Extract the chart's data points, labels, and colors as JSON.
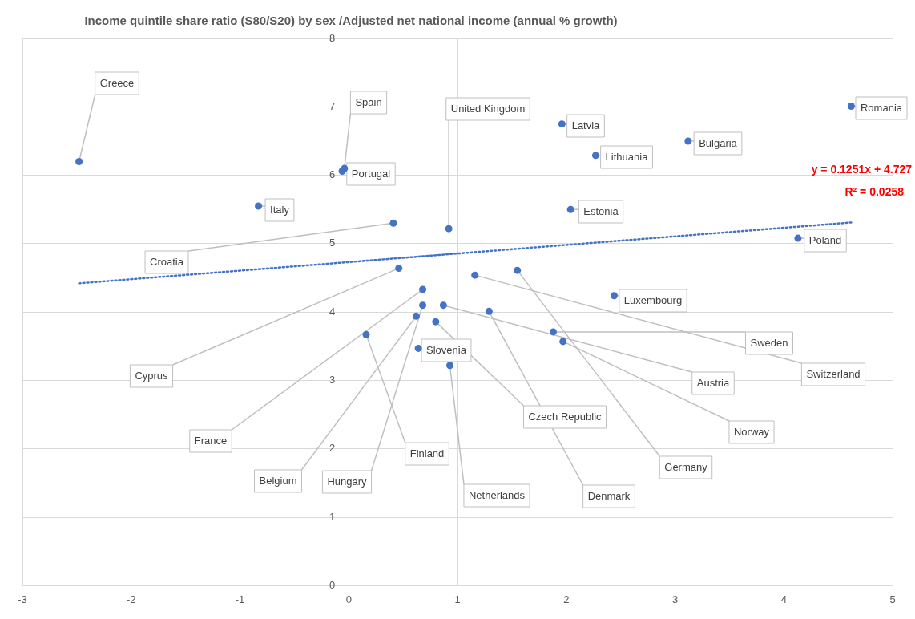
{
  "chart_data": {
    "type": "scatter",
    "title": "Income quintile share ratio (S80/S20) by sex /Adjusted net national income (annual % growth)",
    "xlim": [
      -3,
      5
    ],
    "ylim": [
      0,
      8
    ],
    "xticks": [
      -3,
      -2,
      -1,
      0,
      1,
      2,
      3,
      4,
      5
    ],
    "yticks": [
      0,
      1,
      2,
      3,
      4,
      5,
      6,
      7,
      8
    ],
    "grid": true,
    "legend": false,
    "marker": "circle",
    "annotations": [
      "y = 0.1251x + 4.727",
      "R² = 0.0258"
    ],
    "series": [
      {
        "name": "Greece",
        "color": "#4472c4",
        "x": [
          -2.48
        ],
        "values": [
          6.2
        ]
      },
      {
        "name": "Spain",
        "color": "#4472c4",
        "x": [
          -0.04
        ],
        "values": [
          6.1
        ]
      },
      {
        "name": "Portugal",
        "color": "#4472c4",
        "x": [
          -0.06
        ],
        "values": [
          6.06
        ]
      },
      {
        "name": "Italy",
        "color": "#4472c4",
        "x": [
          -0.83
        ],
        "values": [
          5.55
        ]
      },
      {
        "name": "Croatia",
        "color": "#4472c4",
        "x": [
          0.41
        ],
        "values": [
          5.3
        ]
      },
      {
        "name": "United Kingdom",
        "color": "#4472c4",
        "x": [
          0.92
        ],
        "values": [
          5.22
        ]
      },
      {
        "name": "Cyprus",
        "color": "#4472c4",
        "x": [
          0.46
        ],
        "values": [
          4.64
        ]
      },
      {
        "name": "France",
        "color": "#4472c4",
        "x": [
          0.68
        ],
        "values": [
          4.33
        ]
      },
      {
        "name": "Hungary",
        "color": "#4472c4",
        "x": [
          0.68
        ],
        "values": [
          4.1
        ]
      },
      {
        "name": "Belgium",
        "color": "#4472c4",
        "x": [
          0.62
        ],
        "values": [
          3.94
        ]
      },
      {
        "name": "Czech Republic",
        "color": "#4472c4",
        "x": [
          0.8
        ],
        "values": [
          3.86
        ]
      },
      {
        "name": "Netherlands",
        "color": "#4472c4",
        "x": [
          0.93
        ],
        "values": [
          3.22
        ]
      },
      {
        "name": "Finland",
        "color": "#4472c4",
        "x": [
          0.16
        ],
        "values": [
          3.67
        ]
      },
      {
        "name": "Slovenia",
        "color": "#4472c4",
        "x": [
          0.64
        ],
        "values": [
          3.47
        ]
      },
      {
        "name": "Denmark",
        "color": "#4472c4",
        "x": [
          1.29
        ],
        "values": [
          4.01
        ]
      },
      {
        "name": "Switzerland",
        "color": "#4472c4",
        "x": [
          1.16
        ],
        "values": [
          4.54
        ]
      },
      {
        "name": "Germany",
        "color": "#4472c4",
        "x": [
          1.55
        ],
        "values": [
          4.61
        ]
      },
      {
        "name": "Sweden",
        "color": "#4472c4",
        "x": [
          1.88
        ],
        "values": [
          3.71
        ]
      },
      {
        "name": "Austria",
        "color": "#4472c4",
        "x": [
          0.87
        ],
        "values": [
          4.1
        ]
      },
      {
        "name": "Norway",
        "color": "#4472c4",
        "x": [
          1.97
        ],
        "values": [
          3.57
        ]
      },
      {
        "name": "Latvia",
        "color": "#4472c4",
        "x": [
          1.96
        ],
        "values": [
          6.75
        ]
      },
      {
        "name": "Lithuania",
        "color": "#4472c4",
        "x": [
          2.27
        ],
        "values": [
          6.29
        ]
      },
      {
        "name": "Estonia",
        "color": "#4472c4",
        "x": [
          2.04
        ],
        "values": [
          5.5
        ]
      },
      {
        "name": "Bulgaria",
        "color": "#4472c4",
        "x": [
          3.12
        ],
        "values": [
          6.5
        ]
      },
      {
        "name": "Luxembourg",
        "color": "#4472c4",
        "x": [
          2.44
        ],
        "values": [
          4.24
        ]
      },
      {
        "name": "Poland",
        "color": "#4472c4",
        "x": [
          4.13
        ],
        "values": [
          5.08
        ]
      },
      {
        "name": "Romania",
        "color": "#4472c4",
        "x": [
          4.62
        ],
        "values": [
          7.01
        ]
      },
      {
        "type": "line",
        "color": "#4472c4",
        "line_style": "dotted",
        "marker": "none",
        "x": [
          -2.48,
          4.62
        ],
        "values": [
          4.42,
          5.31
        ]
      }
    ]
  }
}
